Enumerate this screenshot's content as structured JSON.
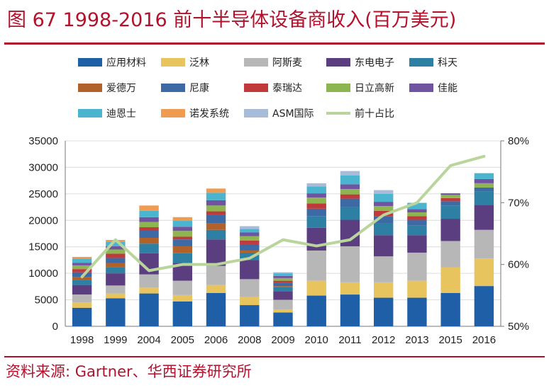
{
  "header": {
    "title": "图 67   1998-2016 前十半导体设备商收入(百万美元)"
  },
  "footer": {
    "source": "资料来源: Gartner、华西证券研究所"
  },
  "chart_data": {
    "type": "bar",
    "stacked": true,
    "title": "图 67   1998-2016 前十半导体设备商收入(百万美元)",
    "categories": [
      "1998",
      "1999",
      "2004",
      "2005",
      "2006",
      "2008",
      "2009",
      "2010",
      "2011",
      "2012",
      "2013",
      "2015",
      "2016"
    ],
    "ylim": [
      0,
      35000
    ],
    "yticks": [
      "0",
      "5000",
      "10000",
      "15000",
      "20000",
      "25000",
      "30000",
      "35000"
    ],
    "y2lim": [
      50,
      80
    ],
    "y2ticks": [
      "50%",
      "60%",
      "70%",
      "80%"
    ],
    "legend_position": "top",
    "grid": true,
    "series": [
      {
        "name": "应用材料",
        "color": "#1f5fa8",
        "values": [
          3500,
          5300,
          6200,
          4700,
          6300,
          4000,
          2600,
          5800,
          6000,
          5400,
          5400,
          6300,
          7600
        ]
      },
      {
        "name": "泛林",
        "color": "#e8c45e",
        "values": [
          1000,
          900,
          1100,
          1200,
          1500,
          1500,
          600,
          2800,
          2300,
          2900,
          3200,
          4800,
          5200
        ]
      },
      {
        "name": "阿斯麦",
        "color": "#b7b7b7",
        "values": [
          1500,
          1500,
          2500,
          2700,
          3600,
          3400,
          1800,
          5700,
          6800,
          4900,
          5300,
          5000,
          5400
        ]
      },
      {
        "name": "东电电子",
        "color": "#5b3e80",
        "values": [
          1800,
          2300,
          4000,
          3400,
          5000,
          3600,
          1600,
          4300,
          5000,
          4000,
          3300,
          4200,
          4700
        ]
      },
      {
        "name": "科天",
        "color": "#2d7fa3",
        "values": [
          1000,
          1100,
          1800,
          1800,
          1800,
          1400,
          800,
          2200,
          2400,
          2300,
          1800,
          2500,
          2600
        ]
      },
      {
        "name": "爱德万",
        "color": "#b0622a",
        "values": [
          500,
          800,
          1100,
          1300,
          1300,
          400,
          200,
          0,
          0,
          0,
          0,
          0,
          0
        ]
      },
      {
        "name": "尼康",
        "color": "#3d6aa5",
        "values": [
          900,
          1000,
          1400,
          1300,
          1600,
          1200,
          600,
          1400,
          1600,
          1300,
          1100,
          800,
          700
        ]
      },
      {
        "name": "泰瑞达",
        "color": "#c0393b",
        "values": [
          600,
          800,
          600,
          500,
          600,
          700,
          400,
          1000,
          800,
          1000,
          700,
          600,
          0
        ]
      },
      {
        "name": "日立高新",
        "color": "#8db650",
        "values": [
          700,
          800,
          1000,
          1100,
          1100,
          800,
          500,
          1100,
          1000,
          900,
          700,
          600,
          800
        ]
      },
      {
        "name": "佳能",
        "color": "#7154a0",
        "values": [
          500,
          600,
          900,
          800,
          1000,
          700,
          400,
          800,
          900,
          800,
          600,
          300,
          800
        ]
      },
      {
        "name": "迪恩士",
        "color": "#4bb5d0",
        "values": [
          800,
          900,
          1200,
          1100,
          1400,
          700,
          500,
          1300,
          1700,
          1500,
          1200,
          0,
          1100
        ]
      },
      {
        "name": "诺发系统",
        "color": "#ef9b52",
        "values": [
          300,
          300,
          1000,
          700,
          800,
          0,
          0,
          0,
          0,
          0,
          0,
          0,
          0
        ]
      },
      {
        "name": "ASM国际",
        "color": "#a8bcd9",
        "values": [
          0,
          0,
          0,
          0,
          0,
          500,
          200,
          600,
          800,
          700,
          0,
          0,
          0
        ]
      }
    ],
    "line_series": {
      "name": "前十占比",
      "color": "#b9d59c",
      "axis": "right",
      "values": [
        58,
        64,
        59,
        60,
        60,
        61,
        64,
        63,
        64,
        68,
        70,
        76,
        77.5
      ]
    }
  }
}
